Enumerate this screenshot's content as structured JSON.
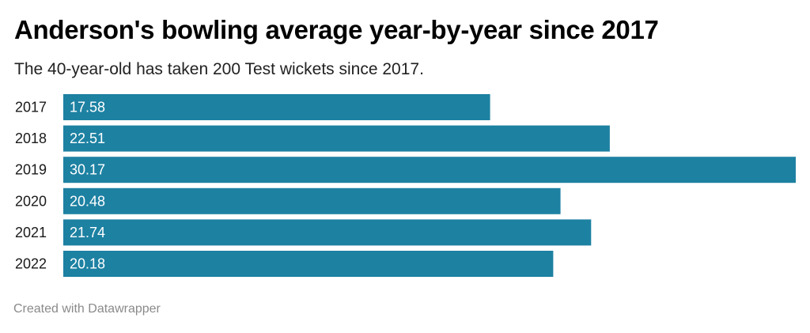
{
  "title": "Anderson's bowling average year-by-year since 2017",
  "subtitle": "The 40-year-old has taken 200 Test wickets since 2017.",
  "footer": "Created with Datawrapper",
  "colors": {
    "bar": "#1d81a2",
    "bar_label": "#ffffff",
    "category_label": "#1a1a1a"
  },
  "chart_data": {
    "type": "bar",
    "orientation": "horizontal",
    "categories": [
      "2017",
      "2018",
      "2019",
      "2020",
      "2021",
      "2022"
    ],
    "values": [
      17.58,
      22.51,
      30.17,
      20.48,
      21.74,
      20.18
    ],
    "value_labels": [
      "17.58",
      "22.51",
      "30.17",
      "20.48",
      "21.74",
      "20.18"
    ],
    "xlim": [
      0,
      30.17
    ],
    "grid": false,
    "legend": "none"
  }
}
